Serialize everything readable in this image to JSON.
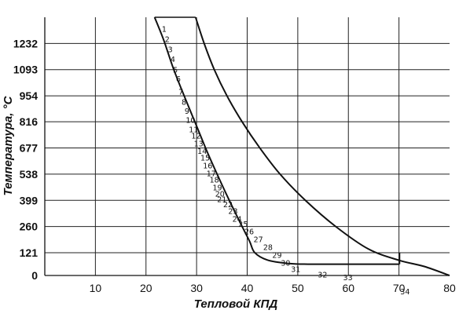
{
  "chart_data": {
    "type": "line",
    "title": "",
    "xlabel": "Тепловой КПД",
    "ylabel": "Температура, °C",
    "xlim": [
      0,
      80
    ],
    "ylim": [
      0,
      1371
    ],
    "grid": true,
    "x_ticks": [
      "10",
      "20",
      "30",
      "40",
      "50",
      "60",
      "70",
      "80"
    ],
    "y_ticks": [
      "0",
      "121",
      "260",
      "399",
      "538",
      "677",
      "816",
      "954",
      "1093",
      "1232"
    ],
    "series": [
      {
        "values_xy": [
          [
            21.7,
            1371
          ],
          [
            23.5,
            1250
          ],
          [
            25.4,
            1100
          ],
          [
            27.6,
            950
          ],
          [
            29.9,
            800
          ],
          [
            32.2,
            650
          ],
          [
            34.7,
            500
          ],
          [
            36.8,
            380
          ],
          [
            39.0,
            260
          ],
          [
            40.5,
            180
          ],
          [
            41.5,
            121
          ],
          [
            44,
            82
          ],
          [
            48,
            64
          ],
          [
            52,
            60
          ],
          [
            60,
            60
          ],
          [
            70.1,
            60
          ]
        ]
      },
      {
        "values_xy": [
          [
            29.8,
            1371
          ],
          [
            31.5,
            1232
          ],
          [
            33.5,
            1093
          ],
          [
            36,
            954
          ],
          [
            39,
            816
          ],
          [
            42.5,
            677
          ],
          [
            46.5,
            538
          ],
          [
            51.5,
            399
          ],
          [
            57.5,
            260
          ],
          [
            64,
            140
          ],
          [
            70.1,
            80
          ],
          [
            75,
            48
          ],
          [
            80,
            0
          ]
        ]
      },
      {
        "values_xy": [
          [
            70.1,
            121
          ],
          [
            70.1,
            60
          ]
        ]
      }
    ],
    "points": [
      {
        "label": "1",
        "x": 23.6,
        "y": 1293
      },
      {
        "label": "2",
        "x": 24.2,
        "y": 1240
      },
      {
        "label": "3",
        "x": 24.8,
        "y": 1185
      },
      {
        "label": "4",
        "x": 25.3,
        "y": 1133
      },
      {
        "label": "5",
        "x": 25.8,
        "y": 1078
      },
      {
        "label": "6",
        "x": 26.4,
        "y": 1030
      },
      {
        "label": "7",
        "x": 26.9,
        "y": 961
      },
      {
        "label": "8",
        "x": 27.5,
        "y": 906
      },
      {
        "label": "9",
        "x": 28.1,
        "y": 858
      },
      {
        "label": "10",
        "x": 28.8,
        "y": 810
      },
      {
        "label": "11",
        "x": 29.4,
        "y": 761
      },
      {
        "label": "12",
        "x": 29.9,
        "y": 727
      },
      {
        "label": "13",
        "x": 30.4,
        "y": 686
      },
      {
        "label": "14",
        "x": 31.1,
        "y": 645
      },
      {
        "label": "15",
        "x": 31.7,
        "y": 610
      },
      {
        "label": "16",
        "x": 32.2,
        "y": 569
      },
      {
        "label": "17",
        "x": 32.9,
        "y": 528
      },
      {
        "label": "18",
        "x": 33.5,
        "y": 493
      },
      {
        "label": "19",
        "x": 34.1,
        "y": 452
      },
      {
        "label": "20",
        "x": 34.6,
        "y": 418
      },
      {
        "label": "21",
        "x": 35.0,
        "y": 390
      },
      {
        "label": "22",
        "x": 36.2,
        "y": 363
      },
      {
        "label": "23",
        "x": 37.2,
        "y": 328
      },
      {
        "label": "24",
        "x": 38.0,
        "y": 286
      },
      {
        "label": "25",
        "x": 39.2,
        "y": 259
      },
      {
        "label": "26",
        "x": 40.4,
        "y": 218
      },
      {
        "label": "27",
        "x": 42.2,
        "y": 177
      },
      {
        "label": "28",
        "x": 44.1,
        "y": 135
      },
      {
        "label": "29",
        "x": 45.9,
        "y": 94
      },
      {
        "label": "30",
        "x": 47.6,
        "y": 52
      },
      {
        "label": "31",
        "x": 49.6,
        "y": 18
      },
      {
        "label": "32",
        "x": 54.9,
        "y": -10
      },
      {
        "label": "33",
        "x": 59.9,
        "y": -24
      },
      {
        "label": "34",
        "x": 71.2,
        "y": -100
      }
    ]
  }
}
